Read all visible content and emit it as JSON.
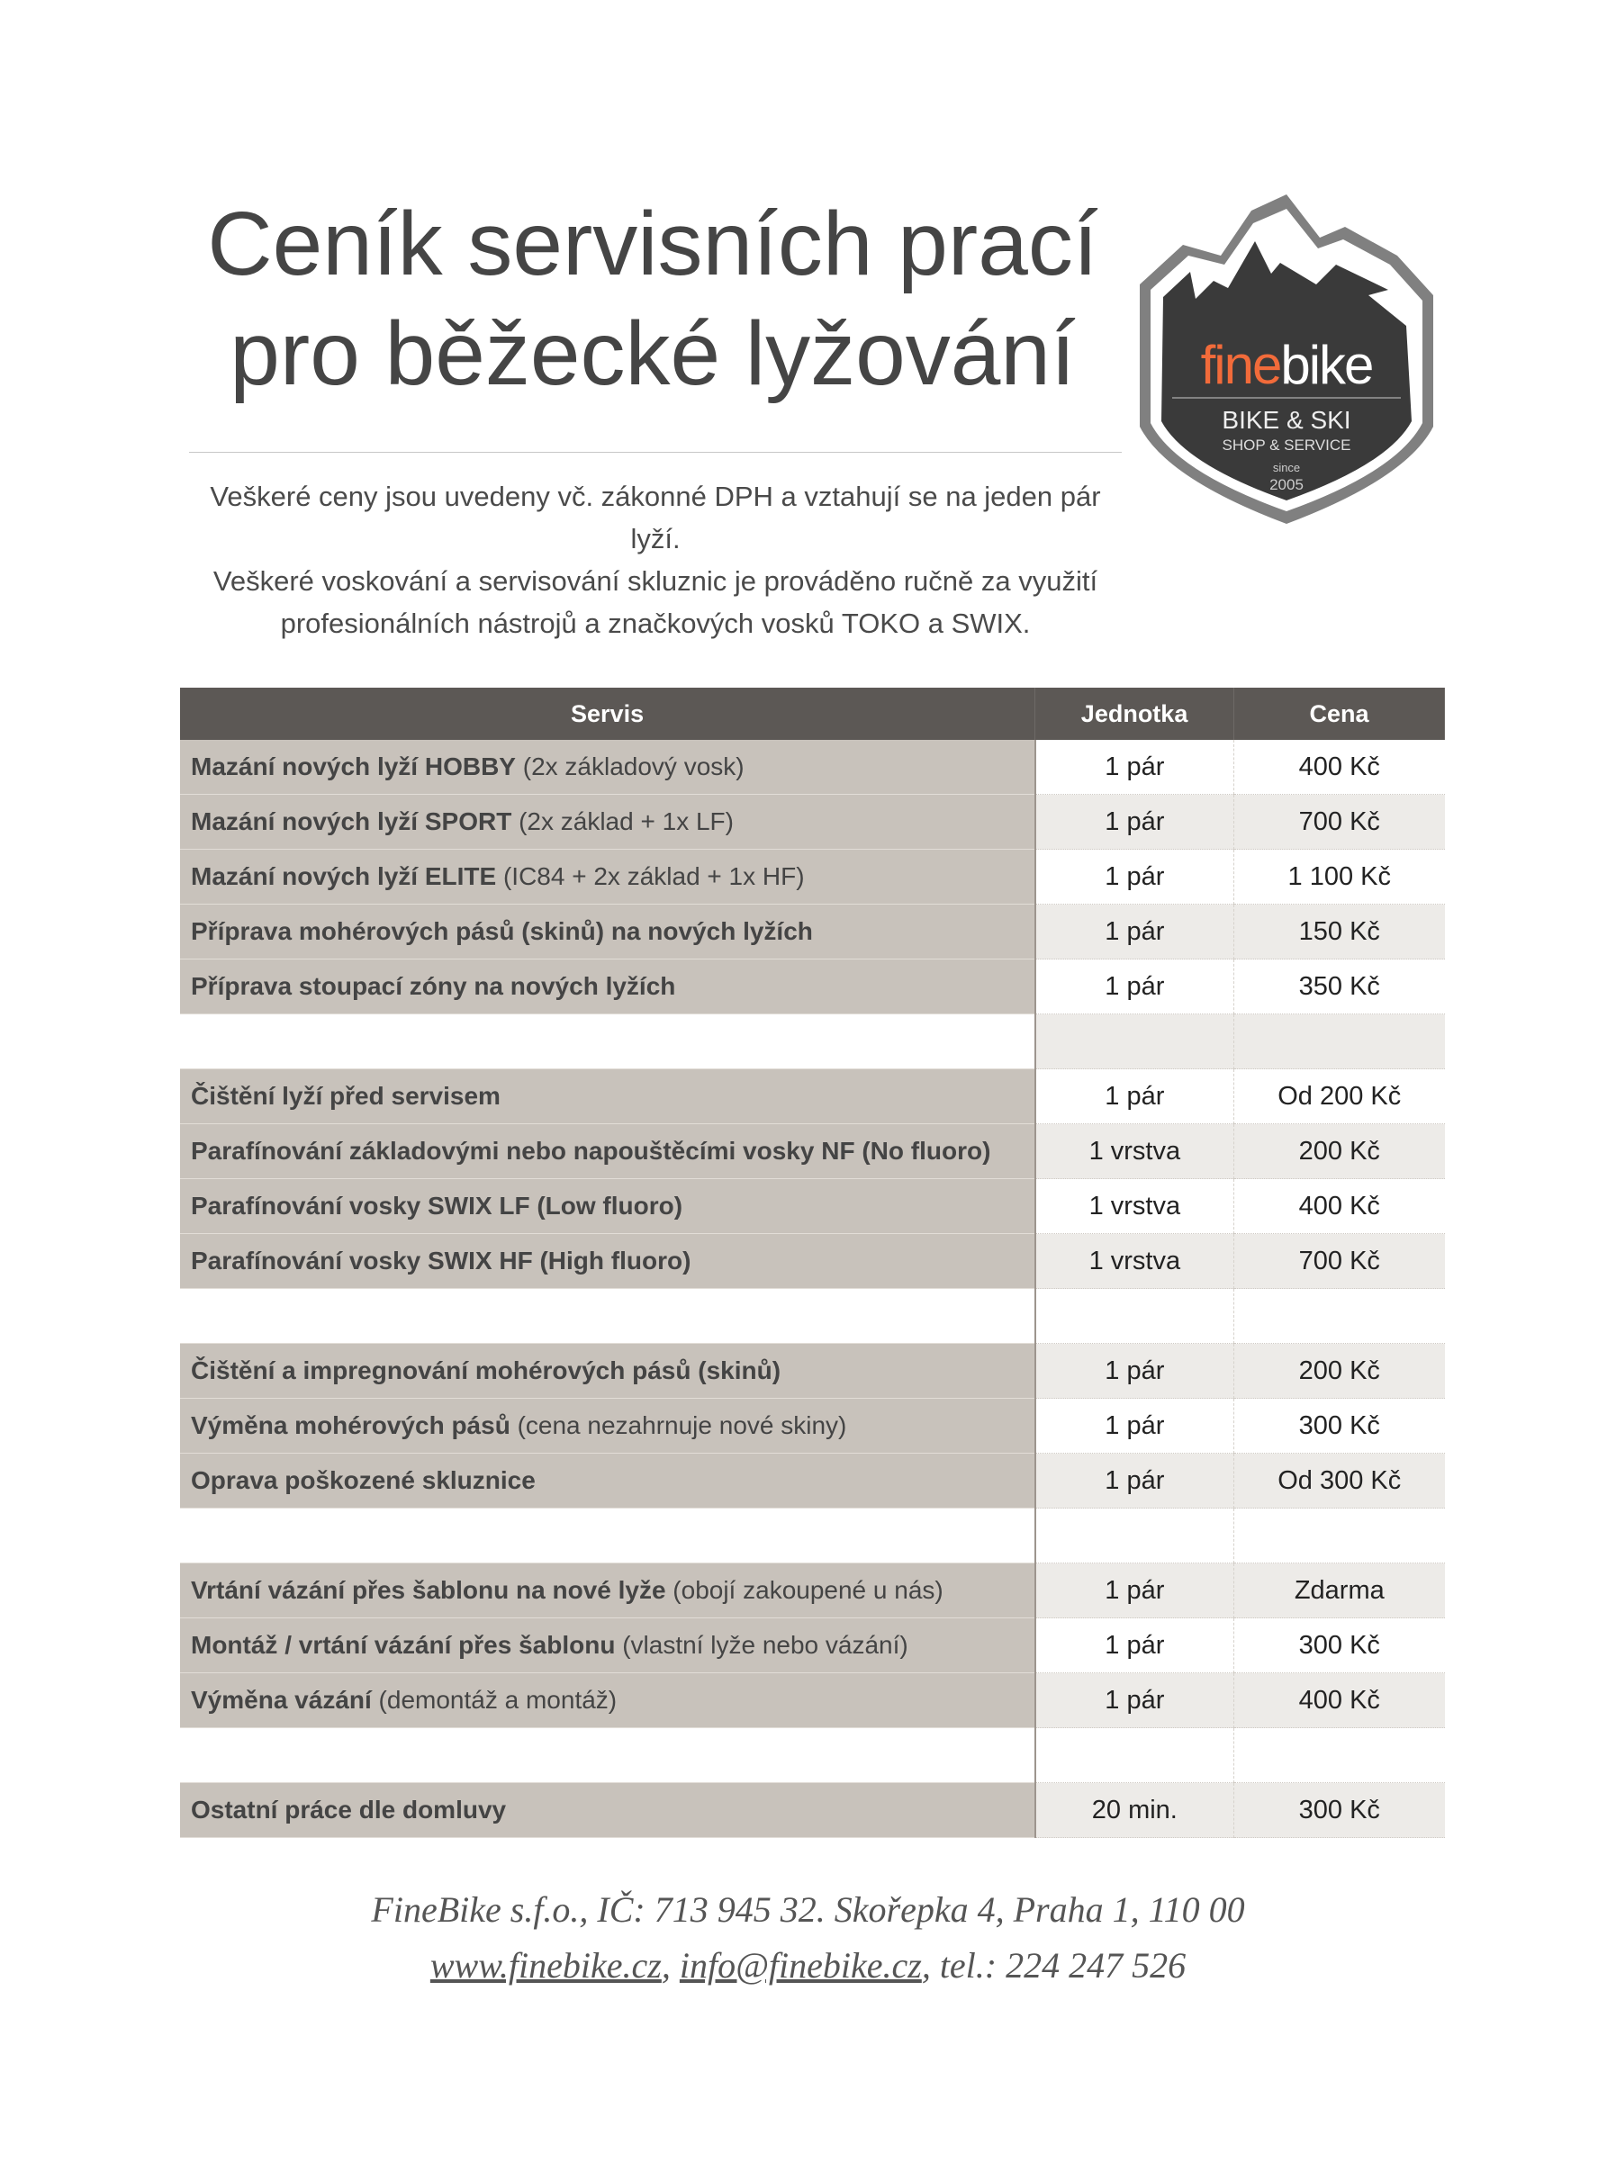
{
  "title": {
    "line1": "Ceník servisních prací",
    "line2": "pro běžecké lyžování"
  },
  "intro": {
    "line1": "Veškeré ceny jsou uvedeny vč. zákonné DPH a vztahují se na jeden pár lyží.",
    "line2": "Veškeré voskování a servisování skluznic je prováděno ručně za využití profesionálních nástrojů a značkových vosků TOKO a SWIX."
  },
  "logo": {
    "brand_part1": "fine",
    "brand_part2": "bike",
    "tagline": "BIKE & SKI",
    "subtagline": "SHOP & SERVICE",
    "since": "since",
    "year": "2005",
    "accent_color": "#f26b3a",
    "badge_color": "#3a3a3a"
  },
  "table": {
    "headers": {
      "service": "Servis",
      "unit": "Jednotka",
      "price": "Cena"
    },
    "rows": [
      {
        "bold": "Mazání nových lyží HOBBY",
        "note": " (2x základový vosk)",
        "unit": "1 pár",
        "price": "400 Kč"
      },
      {
        "bold": "Mazání nových lyží SPORT",
        "note": " (2x základ + 1x LF)",
        "unit": "1 pár",
        "price": "700 Kč"
      },
      {
        "bold": "Mazání nových lyží ELITE",
        "note": " (IC84 + 2x základ + 1x HF)",
        "unit": "1 pár",
        "price": "1 100 Kč"
      },
      {
        "bold": "Příprava mohérových pásů (skinů) na nových lyžích",
        "note": "",
        "unit": "1 pár",
        "price": "150 Kč"
      },
      {
        "bold": "Příprava stoupací zóny na nových lyžích",
        "note": "",
        "unit": "1 pár",
        "price": "350 Kč"
      },
      {
        "bold": "",
        "note": "",
        "unit": "",
        "price": ""
      },
      {
        "bold": "Čištění lyží před servisem",
        "note": "",
        "unit": "1 pár",
        "price": "Od 200 Kč"
      },
      {
        "bold": "Parafínování základovými nebo napouštěcími vosky NF (No fluoro)",
        "note": "",
        "unit": "1 vrstva",
        "price": "200 Kč"
      },
      {
        "bold": "Parafínování vosky SWIX LF (Low fluoro)",
        "note": "",
        "unit": "1 vrstva",
        "price": "400 Kč"
      },
      {
        "bold": "Parafínování vosky SWIX HF (High fluoro)",
        "note": "",
        "unit": "1 vrstva",
        "price": "700 Kč"
      },
      {
        "bold": "",
        "note": "",
        "unit": "",
        "price": ""
      },
      {
        "bold": "Čištění a impregnování mohérových pásů (skinů)",
        "note": "",
        "unit": "1 pár",
        "price": "200 Kč"
      },
      {
        "bold": "Výměna mohérových pásů",
        "note": " (cena nezahrnuje nové skiny)",
        "unit": "1 pár",
        "price": "300 Kč"
      },
      {
        "bold": "Oprava poškozené skluznice",
        "note": "",
        "unit": "1 pár",
        "price": "Od 300 Kč"
      },
      {
        "bold": "",
        "note": "",
        "unit": "",
        "price": ""
      },
      {
        "bold": "Vrtání vázání přes šablonu na nové lyže",
        "note": " (obojí zakoupené u nás)",
        "unit": "1 pár",
        "price": "Zdarma"
      },
      {
        "bold": "Montáž / vrtání vázání přes šablonu",
        "note": " (vlastní lyže nebo vázání)",
        "unit": "1 pár",
        "price": "300 Kč"
      },
      {
        "bold": "Výměna vázání",
        "note": " (demontáž a montáž)",
        "unit": "1 pár",
        "price": "400 Kč"
      },
      {
        "bold": "",
        "note": "",
        "unit": "",
        "price": ""
      },
      {
        "bold": "Ostatní práce dle domluvy",
        "note": "",
        "unit": "20 min.",
        "price": "300 Kč"
      }
    ]
  },
  "footer": {
    "company": "FineBike s.f.o., IČ: 713 945 32. Skořepka 4, Praha 1, 110 00",
    "website": "www.finebike.cz",
    "sep1": ", ",
    "email": "info@finebike.cz",
    "phone": ", tel.: 224 247 526"
  }
}
